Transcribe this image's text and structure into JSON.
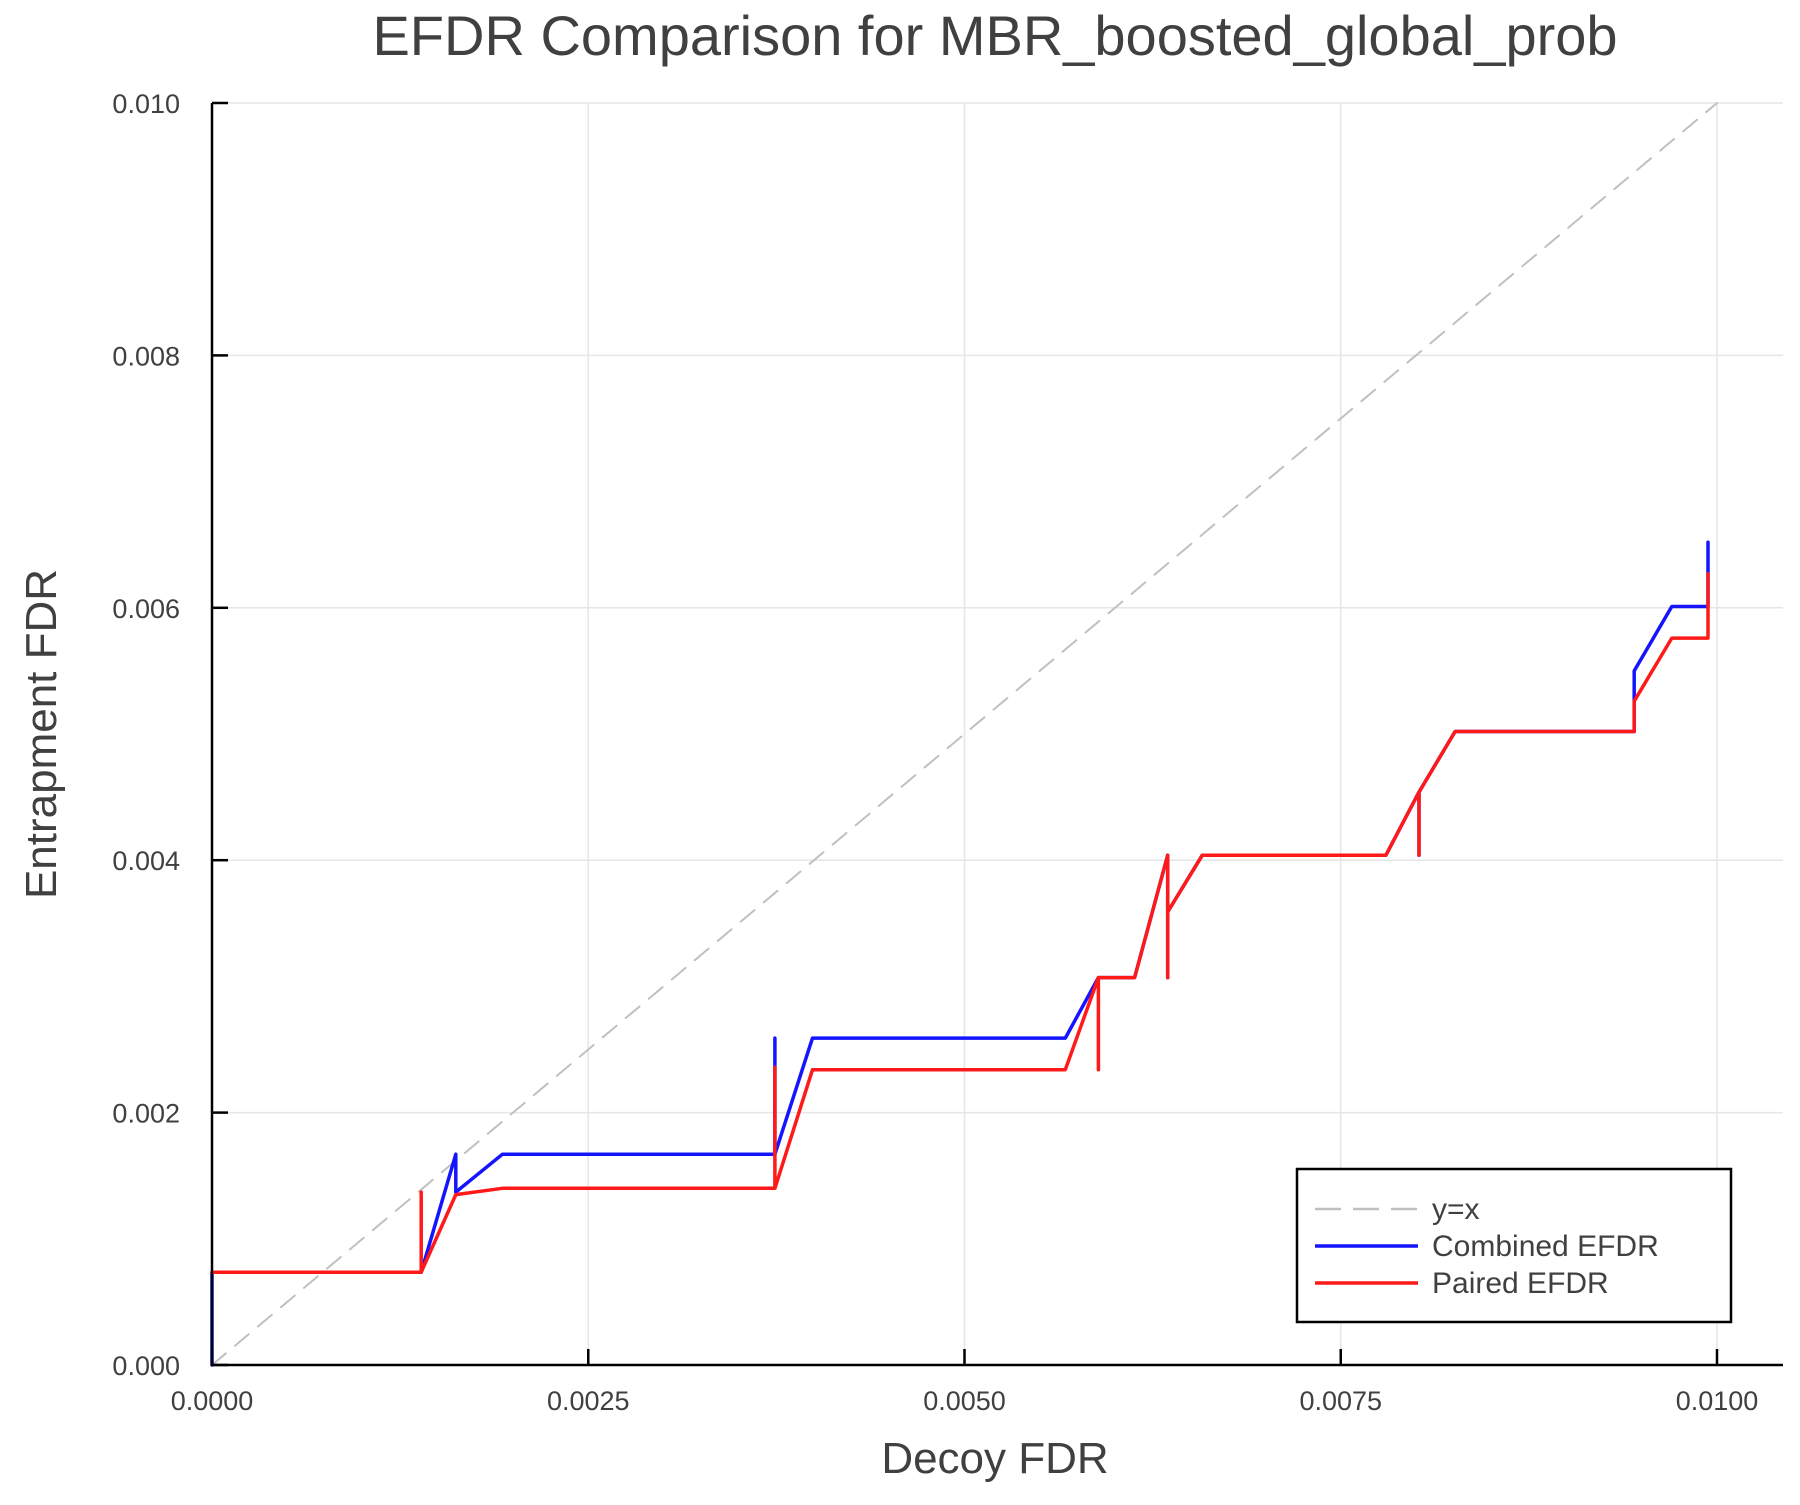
{
  "chart_data": {
    "type": "line",
    "title": "EFDR Comparison for MBR_boosted_global_prob",
    "xlabel": "Decoy FDR",
    "ylabel": "Entrapment FDR",
    "xlim": [
      0,
      0.0105
    ],
    "ylim": [
      0,
      0.01
    ],
    "xticks": [
      "0.0000",
      "0.0025",
      "0.0050",
      "0.0075",
      "0.0100"
    ],
    "yticks": [
      "0.000",
      "0.002",
      "0.004",
      "0.006",
      "0.008",
      "0.010"
    ],
    "grid": true,
    "legend_position": "bottom-right",
    "series": [
      {
        "name": "y=x",
        "color": "#c0c0c0",
        "style": "dashed",
        "points": [
          [
            0,
            0
          ],
          [
            0.01,
            0.01
          ]
        ]
      },
      {
        "name": "Combined EFDR",
        "color": "#1414ff",
        "style": "solid",
        "points": [
          [
            0,
            0
          ],
          [
            0,
            0.000735
          ],
          [
            0.00139,
            0.000735
          ],
          [
            0.00162,
            0.00167
          ],
          [
            0.00162,
            0.00137
          ],
          [
            0.00193,
            0.00167
          ],
          [
            0.00369,
            0.00167
          ],
          [
            0.00374,
            0.00167
          ],
          [
            0.00374,
            0.00259
          ],
          [
            0.00374,
            0.00167
          ],
          [
            0.00399,
            0.00259
          ],
          [
            0.00567,
            0.00259
          ],
          [
            0.00589,
            0.00307
          ],
          [
            0.00613,
            0.00307
          ],
          [
            0.00635,
            0.00404
          ],
          [
            0.00635,
            0.00307
          ],
          [
            0.00635,
            0.00359
          ],
          [
            0.00658,
            0.00404
          ],
          [
            0.0078,
            0.00404
          ],
          [
            0.00802,
            0.00454
          ],
          [
            0.00802,
            0.00404
          ],
          [
            0.00802,
            0.00454
          ],
          [
            0.00826,
            0.00502
          ],
          [
            0.00945,
            0.00502
          ],
          [
            0.00945,
            0.0055
          ],
          [
            0.0097,
            0.00601
          ],
          [
            0.00994,
            0.00601
          ],
          [
            0.00994,
            0.00652
          ]
        ]
      },
      {
        "name": "Paired EFDR",
        "color": "#ff1a1a",
        "style": "solid",
        "points": [
          [
            0,
            0.000735
          ],
          [
            0.00139,
            0.000735
          ],
          [
            0.00139,
            0.00137
          ],
          [
            0.00139,
            0.000735
          ],
          [
            0.00162,
            0.00135
          ],
          [
            0.00193,
            0.0014
          ],
          [
            0.00369,
            0.0014
          ],
          [
            0.00374,
            0.0014
          ],
          [
            0.00374,
            0.00236
          ],
          [
            0.00374,
            0.0014
          ],
          [
            0.00399,
            0.00234
          ],
          [
            0.00567,
            0.00234
          ],
          [
            0.00589,
            0.00307
          ],
          [
            0.00589,
            0.00234
          ],
          [
            0.00589,
            0.00307
          ],
          [
            0.00613,
            0.00307
          ],
          [
            0.00635,
            0.00404
          ],
          [
            0.00635,
            0.00307
          ],
          [
            0.00635,
            0.00359
          ],
          [
            0.00658,
            0.00404
          ],
          [
            0.0078,
            0.00404
          ],
          [
            0.00802,
            0.00454
          ],
          [
            0.00802,
            0.00404
          ],
          [
            0.00802,
            0.00454
          ],
          [
            0.00826,
            0.00502
          ],
          [
            0.00945,
            0.00502
          ],
          [
            0.00945,
            0.00526
          ],
          [
            0.0097,
            0.00576
          ],
          [
            0.00994,
            0.00576
          ],
          [
            0.00994,
            0.00627
          ]
        ]
      }
    ]
  }
}
